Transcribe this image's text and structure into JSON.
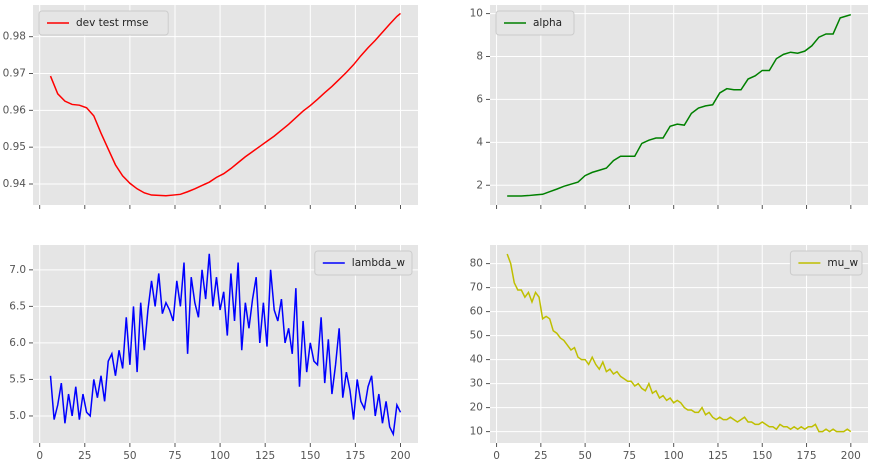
{
  "chart_data": [
    {
      "type": "line",
      "legend": "upper left",
      "grid": true,
      "show_xtick_labels": false,
      "x": [
        6,
        10,
        14,
        18,
        22,
        26,
        30,
        34,
        38,
        42,
        46,
        50,
        54,
        58,
        62,
        66,
        70,
        74,
        78,
        82,
        86,
        90,
        94,
        98,
        102,
        106,
        110,
        114,
        118,
        122,
        126,
        130,
        134,
        138,
        142,
        146,
        150,
        154,
        158,
        162,
        166,
        170,
        174,
        178,
        182,
        186,
        190,
        194,
        198,
        200
      ],
      "series": [
        {
          "name": "dev test rmse",
          "color": "#ff0000",
          "values": [
            0.9693,
            0.9645,
            0.9625,
            0.9616,
            0.9614,
            0.9607,
            0.9585,
            0.9538,
            0.9495,
            0.9452,
            0.9422,
            0.9402,
            0.9387,
            0.9376,
            0.937,
            0.9369,
            0.9368,
            0.937,
            0.9372,
            0.9379,
            0.9387,
            0.9396,
            0.9405,
            0.9418,
            0.9428,
            0.9442,
            0.9458,
            0.9474,
            0.9488,
            0.9502,
            0.9516,
            0.953,
            0.9546,
            0.9562,
            0.958,
            0.9598,
            0.9613,
            0.963,
            0.9648,
            0.9665,
            0.9684,
            0.9703,
            0.9724,
            0.9748,
            0.977,
            0.979,
            0.9812,
            0.9834,
            0.9855,
            0.9863
          ]
        }
      ],
      "xlim": [
        -3.7,
        209.7
      ],
      "ylim": [
        0.9343,
        0.9886
      ],
      "xticks": [
        0,
        25,
        50,
        75,
        100,
        125,
        150,
        175,
        200
      ],
      "yticks": [
        0.94,
        0.95,
        0.96,
        0.97,
        0.98
      ]
    },
    {
      "type": "line",
      "legend": "upper left",
      "grid": true,
      "show_xtick_labels": false,
      "x": [
        6,
        10,
        14,
        18,
        22,
        26,
        30,
        34,
        38,
        42,
        46,
        50,
        54,
        58,
        62,
        66,
        70,
        74,
        78,
        82,
        86,
        90,
        94,
        98,
        102,
        106,
        110,
        114,
        118,
        122,
        126,
        130,
        134,
        138,
        142,
        146,
        150,
        154,
        158,
        162,
        166,
        170,
        174,
        178,
        182,
        186,
        190,
        194,
        198,
        200
      ],
      "series": [
        {
          "name": "alpha",
          "color": "#008000",
          "values": [
            1.5,
            1.5,
            1.5,
            1.52,
            1.55,
            1.58,
            1.7,
            1.82,
            1.95,
            2.05,
            2.15,
            2.45,
            2.6,
            2.7,
            2.8,
            3.15,
            3.35,
            3.35,
            3.35,
            3.95,
            4.1,
            4.2,
            4.2,
            4.75,
            4.85,
            4.8,
            5.35,
            5.6,
            5.7,
            5.75,
            6.3,
            6.5,
            6.45,
            6.45,
            6.95,
            7.1,
            7.35,
            7.35,
            7.9,
            8.1,
            8.2,
            8.15,
            8.25,
            8.5,
            8.9,
            9.05,
            9.05,
            9.8,
            9.9,
            9.95
          ]
        }
      ],
      "xlim": [
        -3.7,
        209.7
      ],
      "ylim": [
        1.08,
        10.4
      ],
      "xticks": [
        0,
        25,
        50,
        75,
        100,
        125,
        150,
        175,
        200
      ],
      "yticks": [
        2,
        4,
        6,
        8,
        10
      ]
    },
    {
      "type": "line",
      "legend": "upper right",
      "grid": true,
      "show_xtick_labels": true,
      "x": [
        6,
        8,
        10,
        12,
        14,
        16,
        18,
        20,
        22,
        24,
        26,
        28,
        30,
        32,
        34,
        36,
        38,
        40,
        42,
        44,
        46,
        48,
        50,
        52,
        54,
        56,
        58,
        60,
        62,
        64,
        66,
        68,
        70,
        72,
        74,
        76,
        78,
        80,
        82,
        84,
        86,
        88,
        90,
        92,
        94,
        96,
        98,
        100,
        102,
        104,
        106,
        108,
        110,
        112,
        114,
        116,
        118,
        120,
        122,
        124,
        126,
        128,
        130,
        132,
        134,
        136,
        138,
        140,
        142,
        144,
        146,
        148,
        150,
        152,
        154,
        156,
        158,
        160,
        162,
        164,
        166,
        168,
        170,
        172,
        174,
        176,
        178,
        180,
        182,
        184,
        186,
        188,
        190,
        192,
        194,
        196,
        198,
        200
      ],
      "series": [
        {
          "name": "lambda_w",
          "color": "#0000ff",
          "values": [
            5.55,
            4.95,
            5.15,
            5.45,
            4.9,
            5.3,
            5.0,
            5.4,
            4.95,
            5.3,
            5.05,
            5.0,
            5.5,
            5.25,
            5.55,
            5.2,
            5.75,
            5.85,
            5.55,
            5.9,
            5.65,
            6.35,
            5.7,
            6.5,
            5.6,
            6.55,
            5.9,
            6.45,
            6.85,
            6.5,
            6.95,
            6.4,
            6.55,
            6.45,
            6.3,
            6.85,
            6.5,
            7.1,
            5.85,
            6.9,
            6.55,
            6.35,
            7.0,
            6.6,
            7.22,
            6.5,
            6.9,
            6.45,
            6.7,
            6.1,
            6.95,
            6.3,
            7.1,
            5.9,
            6.55,
            6.2,
            6.6,
            6.9,
            6.0,
            6.55,
            5.95,
            7.0,
            6.45,
            6.3,
            6.6,
            6.0,
            6.2,
            5.85,
            6.75,
            5.4,
            6.3,
            5.6,
            6.0,
            5.75,
            5.7,
            6.35,
            5.45,
            6.05,
            5.3,
            5.7,
            6.2,
            5.25,
            5.6,
            5.35,
            4.95,
            5.5,
            5.2,
            5.1,
            5.4,
            5.55,
            5.0,
            5.3,
            4.9,
            5.2,
            4.85,
            4.75,
            5.15,
            5.05
          ]
        }
      ],
      "xlim": [
        -3.7,
        209.7
      ],
      "ylim": [
        4.63,
        7.34
      ],
      "xticks": [
        0,
        25,
        50,
        75,
        100,
        125,
        150,
        175,
        200
      ],
      "yticks": [
        {
          "value": 5,
          "label": "5.0"
        },
        5.5,
        {
          "value": 6,
          "label": "6.0"
        },
        6.5,
        {
          "value": 7,
          "label": "7.0"
        }
      ]
    },
    {
      "type": "line",
      "legend": "upper right",
      "grid": true,
      "show_xtick_labels": true,
      "x": [
        6,
        8,
        10,
        12,
        14,
        16,
        18,
        20,
        22,
        24,
        26,
        28,
        30,
        32,
        34,
        36,
        38,
        40,
        42,
        44,
        46,
        48,
        50,
        52,
        54,
        56,
        58,
        60,
        62,
        64,
        66,
        68,
        70,
        72,
        74,
        76,
        78,
        80,
        82,
        84,
        86,
        88,
        90,
        92,
        94,
        96,
        98,
        100,
        102,
        104,
        106,
        108,
        110,
        112,
        114,
        116,
        118,
        120,
        122,
        124,
        126,
        128,
        130,
        132,
        134,
        136,
        138,
        140,
        142,
        144,
        146,
        148,
        150,
        152,
        154,
        156,
        158,
        160,
        162,
        164,
        166,
        168,
        170,
        172,
        174,
        176,
        178,
        180,
        182,
        184,
        186,
        188,
        190,
        192,
        194,
        196,
        198,
        200
      ],
      "series": [
        {
          "name": "mu_w",
          "color": "#bfbf00",
          "values": [
            84,
            80,
            72,
            69,
            69,
            66,
            68,
            64,
            68,
            66,
            57,
            58,
            57,
            52,
            51,
            49,
            48,
            46,
            44,
            45,
            41,
            40,
            40,
            38,
            41,
            38,
            36,
            39,
            35,
            36,
            34,
            35,
            33,
            32,
            31,
            31,
            29,
            30,
            28,
            27,
            30,
            26,
            27,
            24,
            25,
            23,
            24,
            22,
            23,
            22,
            20,
            19,
            19,
            18,
            18,
            20,
            17,
            18,
            16,
            15,
            16,
            15,
            15,
            16,
            15,
            14,
            15,
            16,
            14,
            14,
            13,
            13,
            14,
            13,
            12,
            12,
            11,
            13,
            12,
            12,
            11,
            12,
            11,
            12,
            11,
            12,
            12,
            13,
            10,
            10,
            11,
            10,
            11,
            10,
            10,
            10,
            11,
            10
          ]
        }
      ],
      "xlim": [
        -3.7,
        209.7
      ],
      "ylim": [
        5.25,
        87.75
      ],
      "xticks": [
        0,
        25,
        50,
        75,
        100,
        125,
        150,
        175,
        200
      ],
      "yticks": [
        10,
        20,
        30,
        40,
        50,
        60,
        70,
        80
      ]
    }
  ]
}
